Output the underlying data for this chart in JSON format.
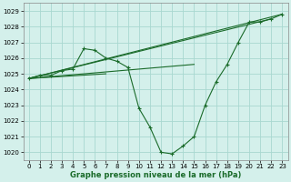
{
  "bg_color": "#d4f0eb",
  "grid_color": "#a8d8d0",
  "line_color": "#1a6b2a",
  "xlabel": "Graphe pression niveau de la mer (hPa)",
  "ylim": [
    1019.5,
    1029.5
  ],
  "xlim": [
    -0.5,
    23.5
  ],
  "yticks": [
    1020,
    1021,
    1022,
    1023,
    1024,
    1025,
    1026,
    1027,
    1028,
    1029
  ],
  "xticks": [
    0,
    1,
    2,
    3,
    4,
    5,
    6,
    7,
    8,
    9,
    10,
    11,
    12,
    13,
    14,
    15,
    16,
    17,
    18,
    19,
    20,
    21,
    22,
    23
  ],
  "main_x": [
    0,
    1,
    2,
    3,
    4,
    5,
    6,
    7,
    8,
    9,
    10,
    11,
    12,
    13,
    14,
    15,
    16,
    17,
    18,
    19,
    20,
    21,
    22,
    23
  ],
  "main_y": [
    1024.7,
    1024.9,
    1024.9,
    1025.2,
    1025.3,
    1026.6,
    1026.5,
    1026.0,
    1025.8,
    1025.4,
    1022.8,
    1021.6,
    1020.0,
    1019.9,
    1020.4,
    1021.0,
    1023.0,
    1024.5,
    1025.6,
    1027.0,
    1028.3,
    1028.3,
    1028.5,
    1028.8
  ],
  "extra_lines": [
    {
      "x": [
        0,
        23
      ],
      "y": [
        1024.7,
        1028.8
      ]
    },
    {
      "x": [
        0,
        22
      ],
      "y": [
        1024.7,
        1028.5
      ]
    },
    {
      "x": [
        0,
        15
      ],
      "y": [
        1024.7,
        1025.6
      ]
    },
    {
      "x": [
        0,
        7
      ],
      "y": [
        1024.7,
        1025.0
      ]
    }
  ]
}
